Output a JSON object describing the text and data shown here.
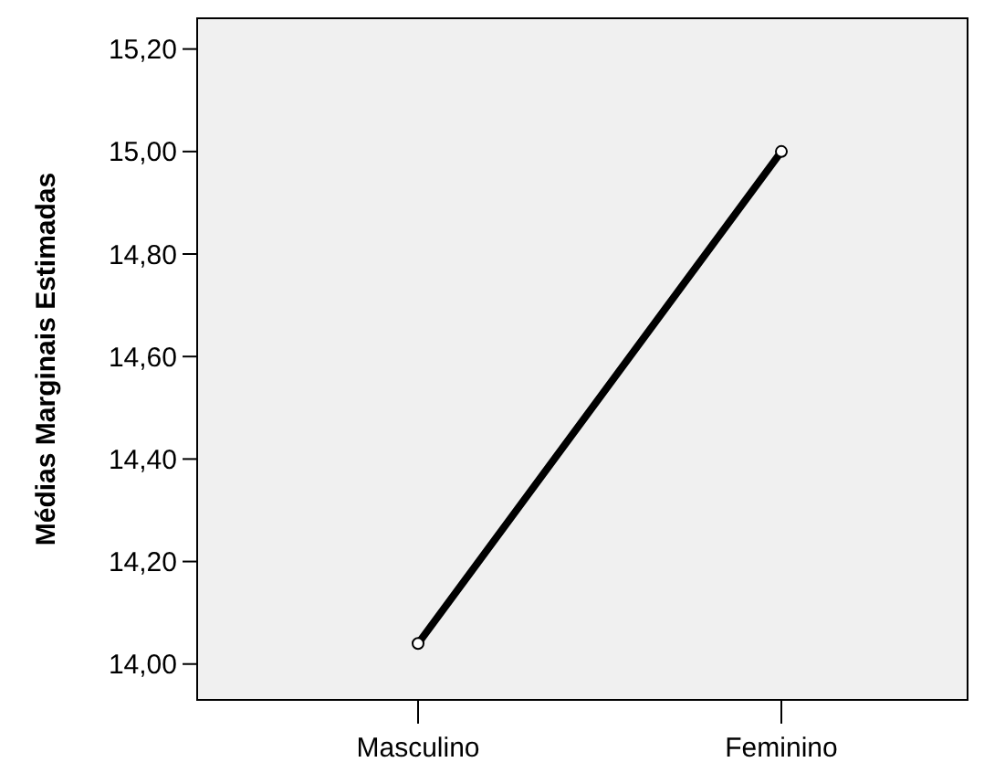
{
  "chart_data": {
    "type": "line",
    "ylabel": "Médias Marginais Estimadas",
    "categories": [
      "Masculino",
      "Feminino"
    ],
    "series": [
      {
        "color": "#000000",
        "values": [
          14.04,
          15.0
        ]
      }
    ],
    "ylim": [
      13.93,
      15.26
    ],
    "yticks": [
      {
        "value": 14,
        "label": "14,00"
      },
      {
        "value": 14.2,
        "label": "14,20"
      },
      {
        "value": 14.4,
        "label": "14,40"
      },
      {
        "value": 14.6,
        "label": "14,60"
      },
      {
        "value": 14.8,
        "label": "14,80"
      },
      {
        "value": 15,
        "label": "15,00"
      },
      {
        "value": 15.2,
        "label": "15,20"
      }
    ],
    "marker": "circle",
    "line_style": "solid",
    "grid": false
  }
}
